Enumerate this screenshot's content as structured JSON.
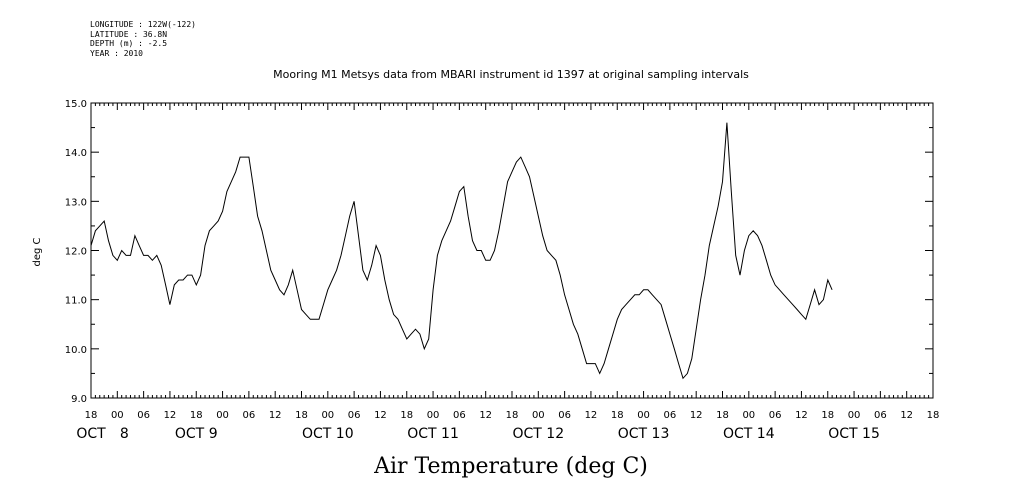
{
  "meta": {
    "lines": [
      "LONGITUDE : 122W(-122)",
      "LATITUDE : 36.8N",
      "DEPTH (m) : -2.5",
      "YEAR : 2010"
    ]
  },
  "title": "Mooring M1 Metsys data from MBARI instrument id 1397 at original sampling intervals",
  "caption": "Air Temperature (deg C)",
  "colors": {
    "line": "#000000",
    "axis": "#000000",
    "background": "#ffffff"
  },
  "chart_data": {
    "type": "line",
    "title": "Mooring M1 Metsys data from MBARI instrument id 1397 at original sampling intervals",
    "xlabel": "",
    "ylabel": "deg C",
    "ylim": [
      9.0,
      15.0
    ],
    "yticks": [
      9.0,
      10.0,
      11.0,
      12.0,
      13.0,
      14.0,
      15.0
    ],
    "ytick_labels": [
      "9.0",
      "10.0",
      "11.0",
      "12.0",
      "13.0",
      "14.0",
      "15.0"
    ],
    "xlim": [
      "2010-10-07 18:00",
      "2010-10-15 18:00"
    ],
    "x_hour_ticks": [
      {
        "t": "2010-10-07 18:00",
        "label": "18"
      },
      {
        "t": "2010-10-08 00:00",
        "label": "00"
      },
      {
        "t": "2010-10-08 06:00",
        "label": "06"
      },
      {
        "t": "2010-10-08 12:00",
        "label": "12"
      },
      {
        "t": "2010-10-08 18:00",
        "label": "18"
      },
      {
        "t": "2010-10-09 00:00",
        "label": "00"
      },
      {
        "t": "2010-10-09 06:00",
        "label": "06"
      },
      {
        "t": "2010-10-09 12:00",
        "label": "12"
      },
      {
        "t": "2010-10-09 18:00",
        "label": "18"
      },
      {
        "t": "2010-10-10 00:00",
        "label": "00"
      },
      {
        "t": "2010-10-10 06:00",
        "label": "06"
      },
      {
        "t": "2010-10-10 12:00",
        "label": "12"
      },
      {
        "t": "2010-10-10 18:00",
        "label": "18"
      },
      {
        "t": "2010-10-11 00:00",
        "label": "00"
      },
      {
        "t": "2010-10-11 06:00",
        "label": "06"
      },
      {
        "t": "2010-10-11 12:00",
        "label": "12"
      },
      {
        "t": "2010-10-11 18:00",
        "label": "18"
      },
      {
        "t": "2010-10-12 00:00",
        "label": "00"
      },
      {
        "t": "2010-10-12 06:00",
        "label": "06"
      },
      {
        "t": "2010-10-12 12:00",
        "label": "12"
      },
      {
        "t": "2010-10-12 18:00",
        "label": "18"
      },
      {
        "t": "2010-10-13 00:00",
        "label": "00"
      },
      {
        "t": "2010-10-13 06:00",
        "label": "06"
      },
      {
        "t": "2010-10-13 12:00",
        "label": "12"
      },
      {
        "t": "2010-10-13 18:00",
        "label": "18"
      },
      {
        "t": "2010-10-14 00:00",
        "label": "00"
      },
      {
        "t": "2010-10-14 06:00",
        "label": "06"
      },
      {
        "t": "2010-10-14 12:00",
        "label": "12"
      },
      {
        "t": "2010-10-14 18:00",
        "label": "18"
      },
      {
        "t": "2010-10-15 00:00",
        "label": "00"
      },
      {
        "t": "2010-10-15 06:00",
        "label": "06"
      },
      {
        "t": "2010-10-15 12:00",
        "label": "12"
      },
      {
        "t": "2010-10-15 18:00",
        "label": "18"
      }
    ],
    "x_day_labels": [
      {
        "t": "2010-10-07 18:00",
        "label": "OCT"
      },
      {
        "t": "2010-10-08 00:00",
        "label": "8"
      },
      {
        "t": "2010-10-08 18:00",
        "label": "OCT  9"
      },
      {
        "t": "2010-10-10 00:00",
        "label": "OCT 10"
      },
      {
        "t": "2010-10-11 00:00",
        "label": "OCT 11"
      },
      {
        "t": "2010-10-12 00:00",
        "label": "OCT 12"
      },
      {
        "t": "2010-10-13 00:00",
        "label": "OCT 13"
      },
      {
        "t": "2010-10-14 00:00",
        "label": "OCT 14"
      },
      {
        "t": "2010-10-15 00:00",
        "label": "OCT 15"
      }
    ],
    "grid": false,
    "series": [
      {
        "values": [
          [
            "2010-10-07 18:00",
            12.1
          ],
          [
            "2010-10-07 19:00",
            12.4
          ],
          [
            "2010-10-07 20:00",
            12.5
          ],
          [
            "2010-10-07 21:00",
            12.6
          ],
          [
            "2010-10-07 22:00",
            12.2
          ],
          [
            "2010-10-07 23:00",
            11.9
          ],
          [
            "2010-10-08 00:00",
            11.8
          ],
          [
            "2010-10-08 01:00",
            12.0
          ],
          [
            "2010-10-08 02:00",
            11.9
          ],
          [
            "2010-10-08 03:00",
            11.9
          ],
          [
            "2010-10-08 04:00",
            12.3
          ],
          [
            "2010-10-08 05:00",
            12.1
          ],
          [
            "2010-10-08 06:00",
            11.9
          ],
          [
            "2010-10-08 07:00",
            11.9
          ],
          [
            "2010-10-08 08:00",
            11.8
          ],
          [
            "2010-10-08 09:00",
            11.9
          ],
          [
            "2010-10-08 10:00",
            11.7
          ],
          [
            "2010-10-08 11:00",
            11.3
          ],
          [
            "2010-10-08 12:00",
            10.9
          ],
          [
            "2010-10-08 13:00",
            11.3
          ],
          [
            "2010-10-08 14:00",
            11.4
          ],
          [
            "2010-10-08 15:00",
            11.4
          ],
          [
            "2010-10-08 16:00",
            11.5
          ],
          [
            "2010-10-08 17:00",
            11.5
          ],
          [
            "2010-10-08 18:00",
            11.3
          ],
          [
            "2010-10-08 19:00",
            11.5
          ],
          [
            "2010-10-08 20:00",
            12.1
          ],
          [
            "2010-10-08 21:00",
            12.4
          ],
          [
            "2010-10-08 22:00",
            12.5
          ],
          [
            "2010-10-08 23:00",
            12.6
          ],
          [
            "2010-10-09 00:00",
            12.8
          ],
          [
            "2010-10-09 01:00",
            13.2
          ],
          [
            "2010-10-09 02:00",
            13.4
          ],
          [
            "2010-10-09 03:00",
            13.6
          ],
          [
            "2010-10-09 04:00",
            13.9
          ],
          [
            "2010-10-09 05:00",
            13.9
          ],
          [
            "2010-10-09 06:00",
            13.9
          ],
          [
            "2010-10-09 07:00",
            13.3
          ],
          [
            "2010-10-09 08:00",
            12.7
          ],
          [
            "2010-10-09 09:00",
            12.4
          ],
          [
            "2010-10-09 10:00",
            12.0
          ],
          [
            "2010-10-09 11:00",
            11.6
          ],
          [
            "2010-10-09 12:00",
            11.4
          ],
          [
            "2010-10-09 13:00",
            11.2
          ],
          [
            "2010-10-09 14:00",
            11.1
          ],
          [
            "2010-10-09 15:00",
            11.3
          ],
          [
            "2010-10-09 16:00",
            11.6
          ],
          [
            "2010-10-09 17:00",
            11.2
          ],
          [
            "2010-10-09 18:00",
            10.8
          ],
          [
            "2010-10-09 19:00",
            10.7
          ],
          [
            "2010-10-09 20:00",
            10.6
          ],
          [
            "2010-10-09 21:00",
            10.6
          ],
          [
            "2010-10-09 22:00",
            10.6
          ],
          [
            "2010-10-09 23:00",
            10.9
          ],
          [
            "2010-10-10 00:00",
            11.2
          ],
          [
            "2010-10-10 01:00",
            11.4
          ],
          [
            "2010-10-10 02:00",
            11.6
          ],
          [
            "2010-10-10 03:00",
            11.9
          ],
          [
            "2010-10-10 04:00",
            12.3
          ],
          [
            "2010-10-10 05:00",
            12.7
          ],
          [
            "2010-10-10 06:00",
            13.0
          ],
          [
            "2010-10-10 07:00",
            12.3
          ],
          [
            "2010-10-10 08:00",
            11.6
          ],
          [
            "2010-10-10 09:00",
            11.4
          ],
          [
            "2010-10-10 10:00",
            11.7
          ],
          [
            "2010-10-10 11:00",
            12.1
          ],
          [
            "2010-10-10 12:00",
            11.9
          ],
          [
            "2010-10-10 13:00",
            11.4
          ],
          [
            "2010-10-10 14:00",
            11.0
          ],
          [
            "2010-10-10 15:00",
            10.7
          ],
          [
            "2010-10-10 16:00",
            10.6
          ],
          [
            "2010-10-10 17:00",
            10.4
          ],
          [
            "2010-10-10 18:00",
            10.2
          ],
          [
            "2010-10-10 19:00",
            10.3
          ],
          [
            "2010-10-10 20:00",
            10.4
          ],
          [
            "2010-10-10 21:00",
            10.3
          ],
          [
            "2010-10-10 22:00",
            10.0
          ],
          [
            "2010-10-10 23:00",
            10.2
          ],
          [
            "2010-10-11 00:00",
            11.2
          ],
          [
            "2010-10-11 01:00",
            11.9
          ],
          [
            "2010-10-11 02:00",
            12.2
          ],
          [
            "2010-10-11 03:00",
            12.4
          ],
          [
            "2010-10-11 04:00",
            12.6
          ],
          [
            "2010-10-11 05:00",
            12.9
          ],
          [
            "2010-10-11 06:00",
            13.2
          ],
          [
            "2010-10-11 07:00",
            13.3
          ],
          [
            "2010-10-11 08:00",
            12.7
          ],
          [
            "2010-10-11 09:00",
            12.2
          ],
          [
            "2010-10-11 10:00",
            12.0
          ],
          [
            "2010-10-11 11:00",
            12.0
          ],
          [
            "2010-10-11 12:00",
            11.8
          ],
          [
            "2010-10-11 13:00",
            11.8
          ],
          [
            "2010-10-11 14:00",
            12.0
          ],
          [
            "2010-10-11 15:00",
            12.4
          ],
          [
            "2010-10-11 16:00",
            12.9
          ],
          [
            "2010-10-11 17:00",
            13.4
          ],
          [
            "2010-10-11 18:00",
            13.6
          ],
          [
            "2010-10-11 19:00",
            13.8
          ],
          [
            "2010-10-11 20:00",
            13.9
          ],
          [
            "2010-10-11 21:00",
            13.7
          ],
          [
            "2010-10-11 22:00",
            13.5
          ],
          [
            "2010-10-11 23:00",
            13.1
          ],
          [
            "2010-10-12 00:00",
            12.7
          ],
          [
            "2010-10-12 01:00",
            12.3
          ],
          [
            "2010-10-12 02:00",
            12.0
          ],
          [
            "2010-10-12 03:00",
            11.9
          ],
          [
            "2010-10-12 04:00",
            11.8
          ],
          [
            "2010-10-12 05:00",
            11.5
          ],
          [
            "2010-10-12 06:00",
            11.1
          ],
          [
            "2010-10-12 07:00",
            10.8
          ],
          [
            "2010-10-12 08:00",
            10.5
          ],
          [
            "2010-10-12 09:00",
            10.3
          ],
          [
            "2010-10-12 10:00",
            10.0
          ],
          [
            "2010-10-12 11:00",
            9.7
          ],
          [
            "2010-10-12 12:00",
            9.7
          ],
          [
            "2010-10-12 13:00",
            9.7
          ],
          [
            "2010-10-12 14:00",
            9.5
          ],
          [
            "2010-10-12 15:00",
            9.7
          ],
          [
            "2010-10-12 16:00",
            10.0
          ],
          [
            "2010-10-12 17:00",
            10.3
          ],
          [
            "2010-10-12 18:00",
            10.6
          ],
          [
            "2010-10-12 19:00",
            10.8
          ],
          [
            "2010-10-12 20:00",
            10.9
          ],
          [
            "2010-10-12 21:00",
            11.0
          ],
          [
            "2010-10-12 22:00",
            11.1
          ],
          [
            "2010-10-12 23:00",
            11.1
          ],
          [
            "2010-10-13 00:00",
            11.2
          ],
          [
            "2010-10-13 01:00",
            11.2
          ],
          [
            "2010-10-13 02:00",
            11.1
          ],
          [
            "2010-10-13 03:00",
            11.0
          ],
          [
            "2010-10-13 04:00",
            10.9
          ],
          [
            "2010-10-13 05:00",
            10.6
          ],
          [
            "2010-10-13 06:00",
            10.3
          ],
          [
            "2010-10-13 07:00",
            10.0
          ],
          [
            "2010-10-13 08:00",
            9.7
          ],
          [
            "2010-10-13 09:00",
            9.4
          ],
          [
            "2010-10-13 10:00",
            9.5
          ],
          [
            "2010-10-13 11:00",
            9.8
          ],
          [
            "2010-10-13 12:00",
            10.4
          ],
          [
            "2010-10-13 13:00",
            11.0
          ],
          [
            "2010-10-13 14:00",
            11.5
          ],
          [
            "2010-10-13 15:00",
            12.1
          ],
          [
            "2010-10-13 16:00",
            12.5
          ],
          [
            "2010-10-13 17:00",
            12.9
          ],
          [
            "2010-10-13 18:00",
            13.4
          ],
          [
            "2010-10-13 19:00",
            14.6
          ],
          [
            "2010-10-13 20:00",
            13.2
          ],
          [
            "2010-10-13 21:00",
            11.9
          ],
          [
            "2010-10-13 22:00",
            11.5
          ],
          [
            "2010-10-13 23:00",
            12.0
          ],
          [
            "2010-10-14 00:00",
            12.3
          ],
          [
            "2010-10-14 01:00",
            12.4
          ],
          [
            "2010-10-14 02:00",
            12.3
          ],
          [
            "2010-10-14 03:00",
            12.1
          ],
          [
            "2010-10-14 04:00",
            11.8
          ],
          [
            "2010-10-14 05:00",
            11.5
          ],
          [
            "2010-10-14 06:00",
            11.3
          ],
          [
            "2010-10-14 07:00",
            11.2
          ],
          [
            "2010-10-14 08:00",
            11.1
          ],
          [
            "2010-10-14 09:00",
            11.0
          ],
          [
            "2010-10-14 10:00",
            10.9
          ],
          [
            "2010-10-14 11:00",
            10.8
          ],
          [
            "2010-10-14 12:00",
            10.7
          ],
          [
            "2010-10-14 13:00",
            10.6
          ],
          [
            "2010-10-14 14:00",
            10.9
          ],
          [
            "2010-10-14 15:00",
            11.2
          ],
          [
            "2010-10-14 16:00",
            10.9
          ],
          [
            "2010-10-14 17:00",
            11.0
          ],
          [
            "2010-10-14 18:00",
            11.4
          ],
          [
            "2010-10-14 19:00",
            11.2
          ]
        ]
      }
    ]
  }
}
